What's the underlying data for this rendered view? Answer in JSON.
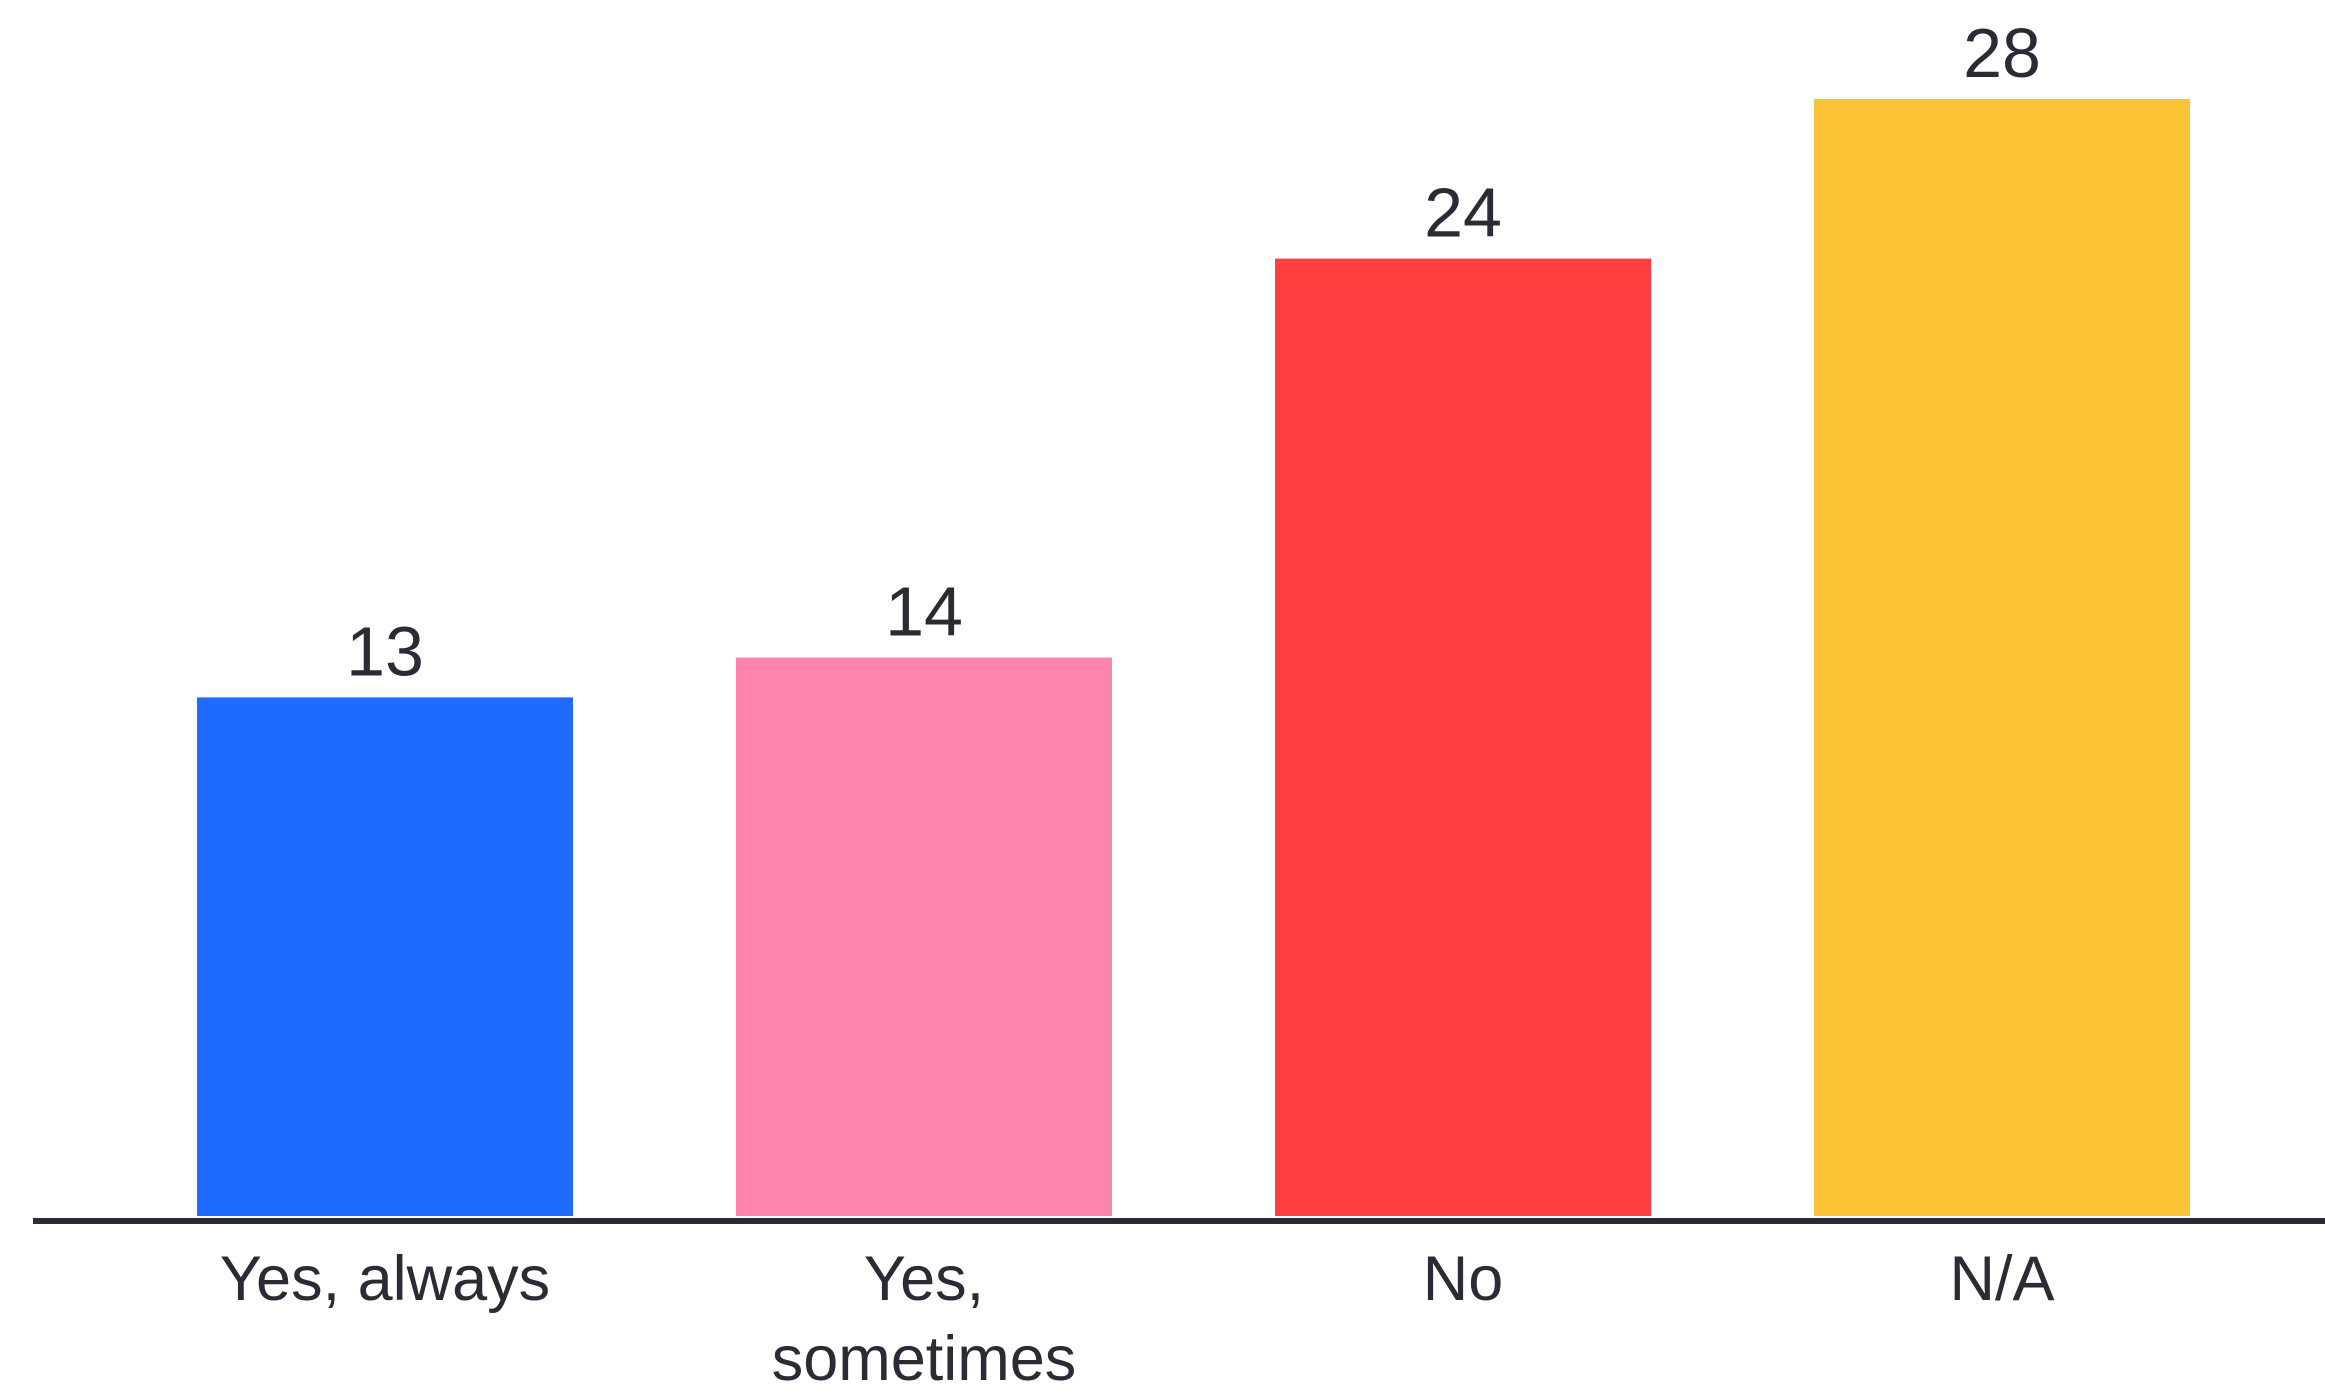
{
  "chart_data": {
    "type": "bar",
    "categories": [
      [
        "Yes, always"
      ],
      [
        "Yes,",
        "sometimes"
      ],
      [
        "No"
      ],
      [
        "N/A"
      ]
    ],
    "values": [
      13,
      14,
      24,
      28
    ],
    "value_labels": [
      "13",
      "14",
      "24",
      "28"
    ],
    "colors": [
      "#1f6bff",
      "#ff84ad",
      "#ff4040",
      "#fdc336"
    ],
    "axis_color": "#2b2b35",
    "ylim": [
      0,
      28
    ],
    "grid": false,
    "legend": "none",
    "title": "",
    "xlabel": "",
    "ylabel": ""
  }
}
